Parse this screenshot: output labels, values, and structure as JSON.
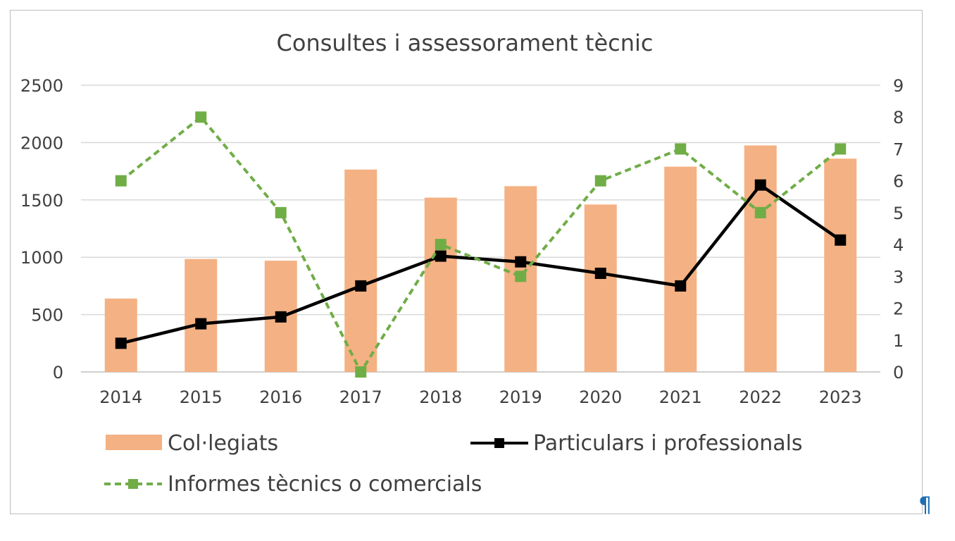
{
  "chart_data": {
    "type": "bar",
    "title": "Consultes i assessorament tècnic",
    "categories": [
      "2014",
      "2015",
      "2016",
      "2017",
      "2018",
      "2019",
      "2020",
      "2021",
      "2022",
      "2023"
    ],
    "y_left": {
      "ticks": [
        "0",
        "500",
        "1000",
        "1500",
        "2000",
        "2500"
      ],
      "range": [
        0,
        2500
      ]
    },
    "y_right": {
      "ticks": [
        "0",
        "1",
        "2",
        "3",
        "4",
        "5",
        "6",
        "7",
        "8",
        "9"
      ],
      "range": [
        0,
        9
      ]
    },
    "grid": true,
    "legend_position": "bottom",
    "series": [
      {
        "name": "Col·legiats",
        "type": "bar",
        "axis": "left",
        "color": "#f4b183",
        "values": [
          640,
          985,
          970,
          1765,
          1520,
          1620,
          1460,
          1790,
          1975,
          1860
        ]
      },
      {
        "name": "Particulars i professionals",
        "type": "line",
        "axis": "left",
        "color": "#000000",
        "values": [
          250,
          420,
          480,
          750,
          1010,
          960,
          860,
          750,
          1630,
          1150
        ]
      },
      {
        "name": "Informes tècnics o comercials",
        "type": "line",
        "axis": "right",
        "color": "#70ad47",
        "dashed": true,
        "values": [
          6,
          8,
          5,
          0,
          4,
          3,
          6,
          7,
          5,
          7
        ]
      }
    ]
  },
  "pilcrow": "¶"
}
